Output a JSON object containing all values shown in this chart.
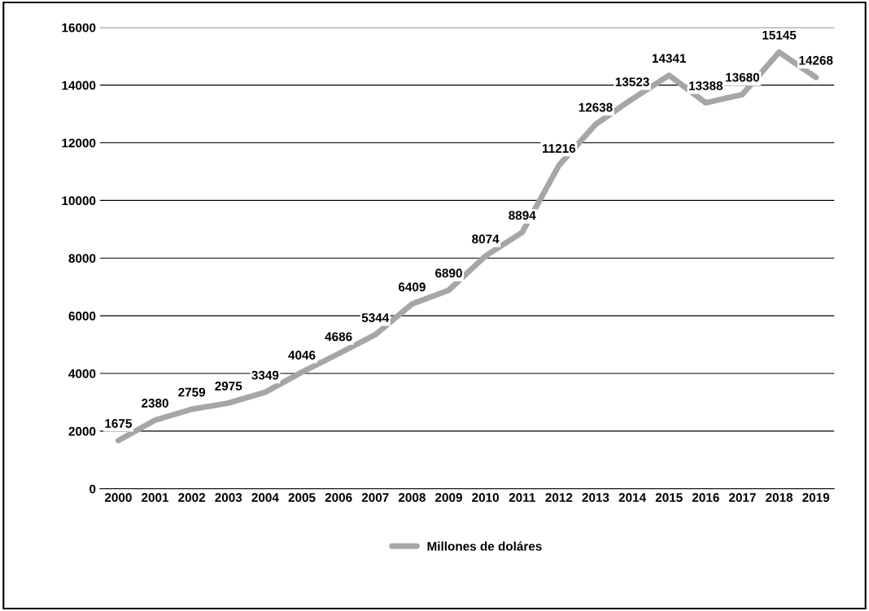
{
  "chart_data": {
    "type": "line",
    "categories": [
      "2000",
      "2001",
      "2002",
      "2003",
      "2004",
      "2005",
      "2006",
      "2007",
      "2008",
      "2009",
      "2010",
      "2011",
      "2012",
      "2013",
      "2014",
      "2015",
      "2016",
      "2017",
      "2018",
      "2019"
    ],
    "series": [
      {
        "name": "Millones de doláres",
        "color": "#a6a6a6",
        "values": [
          1675,
          2380,
          2759,
          2975,
          3349,
          4046,
          4686,
          5344,
          6409,
          6890,
          8074,
          8894,
          11216,
          12638,
          13523,
          14341,
          13388,
          13680,
          15145,
          14268
        ]
      }
    ],
    "ylim": [
      0,
      16000
    ],
    "yticks": [
      0,
      2000,
      4000,
      6000,
      8000,
      10000,
      12000,
      14000,
      16000
    ],
    "grid": "y",
    "legend": "bottom",
    "data_labels": true,
    "marker": "none",
    "line_style": "solid"
  }
}
